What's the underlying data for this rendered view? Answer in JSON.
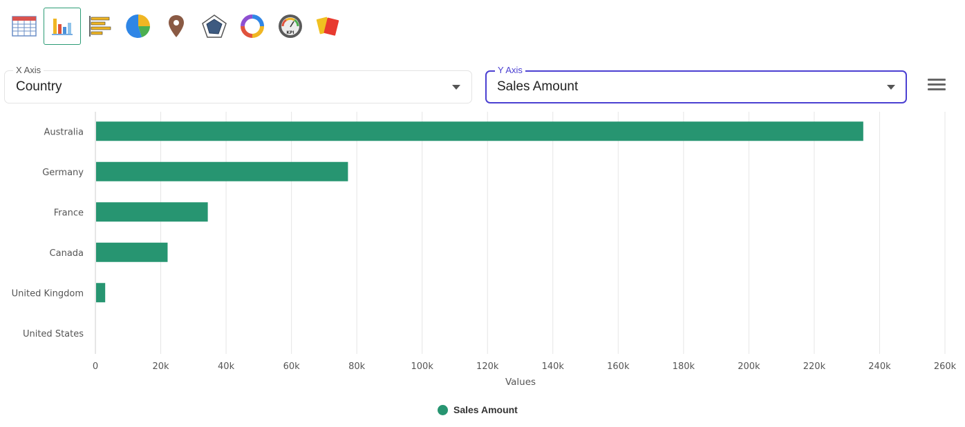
{
  "toolbar": {
    "tools": [
      {
        "icon": "table-icon",
        "active": false
      },
      {
        "icon": "bar-chart-icon",
        "active": true
      },
      {
        "icon": "horizontal-bar-chart-icon",
        "active": false
      },
      {
        "icon": "pie-chart-icon",
        "active": false
      },
      {
        "icon": "map-pin-icon",
        "active": false
      },
      {
        "icon": "radar-chart-icon",
        "active": false
      },
      {
        "icon": "donut-chart-icon",
        "active": false
      },
      {
        "icon": "kpi-gauge-icon",
        "active": false
      },
      {
        "icon": "cards-icon",
        "active": false
      }
    ]
  },
  "x_axis_select": {
    "label": "X Axis",
    "value": "Country"
  },
  "y_axis_select": {
    "label": "Y Axis",
    "value": "Sales Amount"
  },
  "menu": {
    "icon": "hamburger-menu-icon"
  },
  "colors": {
    "bar": "#279571",
    "grid": "#e6e6e6",
    "accent": "#4a3fd1"
  },
  "chart_data": {
    "type": "bar",
    "orientation": "horizontal",
    "categories": [
      "Australia",
      "Germany",
      "France",
      "Canada",
      "United Kingdom",
      "United States"
    ],
    "series": [
      {
        "name": "Sales Amount",
        "values": [
          235000,
          77300,
          34400,
          22100,
          3000,
          0
        ]
      }
    ],
    "xlabel": "Values",
    "xlim": [
      0,
      260000
    ],
    "xticks": [
      0,
      20000,
      40000,
      60000,
      80000,
      100000,
      120000,
      140000,
      160000,
      180000,
      200000,
      220000,
      240000,
      260000
    ],
    "xtick_labels": [
      "0",
      "20k",
      "40k",
      "60k",
      "80k",
      "100k",
      "120k",
      "140k",
      "160k",
      "180k",
      "200k",
      "220k",
      "240k",
      "260k"
    ],
    "grid": true,
    "legend_position": "bottom-center"
  }
}
